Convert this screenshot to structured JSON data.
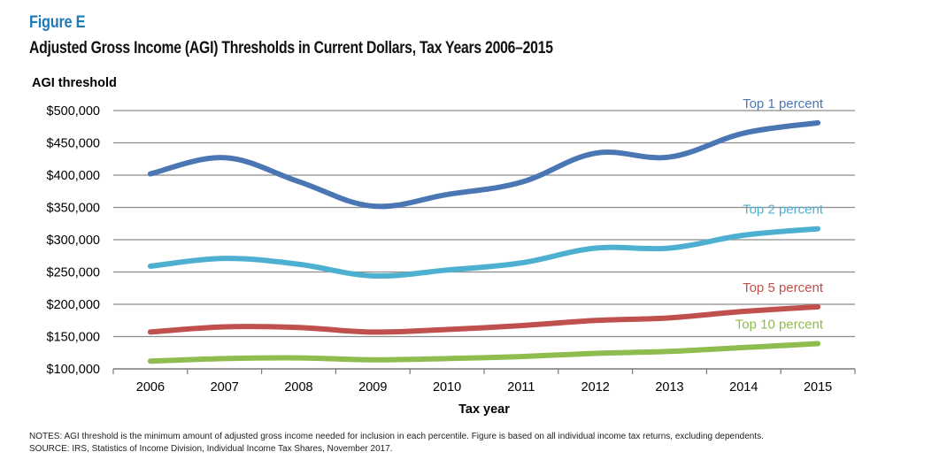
{
  "figure": {
    "label": "Figure E",
    "title": "Adjusted Gross Income (AGI) Thresholds in Current Dollars, Tax Years 2006–2015"
  },
  "notes": {
    "line1": "NOTES: AGI threshold is the minimum amount of adjusted gross income needed for inclusion in each percentile. Figure is based on all individual income tax returns, excluding dependents.",
    "line2": "SOURCE: IRS, Statistics of Income Division, Individual Income Tax Shares, November 2017."
  },
  "chart_data": {
    "type": "line",
    "title": "Adjusted Gross Income (AGI) Thresholds in Current Dollars, Tax Years 2006–2015",
    "ylabel": "AGI threshold",
    "xlabel": "Tax year",
    "x": [
      2006,
      2007,
      2008,
      2009,
      2010,
      2011,
      2012,
      2013,
      2014,
      2015
    ],
    "ylim": [
      100000,
      500000
    ],
    "yticks": [
      100000,
      150000,
      200000,
      250000,
      300000,
      350000,
      400000,
      450000,
      500000
    ],
    "ytick_labels": [
      "$100,000",
      "$150,000",
      "$200,000",
      "$250,000",
      "$300,000",
      "$350,000",
      "$400,000",
      "$450,000",
      "$500,000"
    ],
    "grid": "horizontal",
    "legend": "inline labels at right end of each line",
    "series": [
      {
        "name": "Top 1 percent",
        "color": "#4a77b4",
        "values": [
          402000,
          427000,
          390000,
          352000,
          370000,
          389000,
          434000,
          428000,
          465000,
          481000
        ]
      },
      {
        "name": "Top 2 percent",
        "color": "#4eb0d0",
        "values": [
          259000,
          271000,
          262000,
          244000,
          253000,
          264000,
          287000,
          287000,
          307000,
          317000
        ]
      },
      {
        "name": "Top 5 percent",
        "color": "#c0504d",
        "values": [
          157000,
          165000,
          164000,
          157000,
          161000,
          167000,
          175000,
          179000,
          189000,
          196000
        ]
      },
      {
        "name": "Top 10 percent",
        "color": "#8fbc4e",
        "values": [
          112000,
          116000,
          117000,
          114000,
          116000,
          119000,
          124000,
          127000,
          133000,
          139000
        ]
      }
    ]
  }
}
